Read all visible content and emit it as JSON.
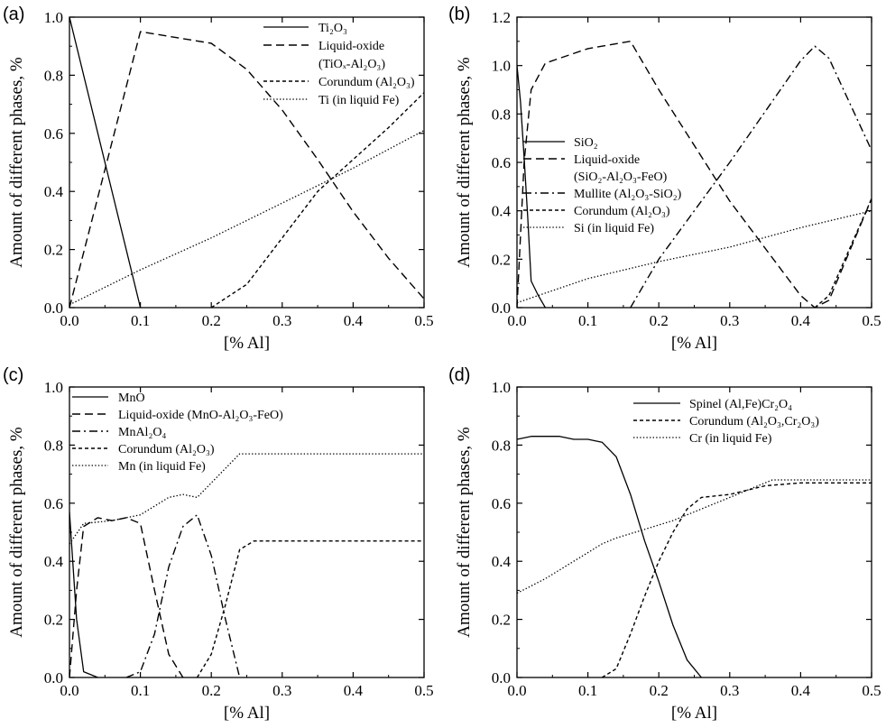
{
  "chart_data": [
    {
      "type": "line",
      "panel_label": "(a)",
      "xlabel": "[% Al]",
      "ylabel": "Amount of different phases, %",
      "xlim": [
        0,
        0.5
      ],
      "ylim": [
        0,
        1.0
      ],
      "xticks": [
        "0.0",
        "0.1",
        "0.2",
        "0.3",
        "0.4",
        "0.5"
      ],
      "yticks": [
        "0.0",
        "0.2",
        "0.4",
        "0.6",
        "0.8",
        "1.0"
      ],
      "legend_position": "top-right",
      "series": [
        {
          "name": "Ti₂O₃",
          "legend_lines": [
            "Ti₂O₃"
          ],
          "style": "solid",
          "x": [
            0,
            0.1
          ],
          "y": [
            1.0,
            0.0
          ]
        },
        {
          "name": "Liquid-oxide (TiOₓ-Al₂O₃)",
          "legend_lines": [
            "Liquid-oxide",
            "(TiOₓ-Al₂O₃)"
          ],
          "style": "dashed",
          "x": [
            0,
            0.1,
            0.2,
            0.25,
            0.3,
            0.35,
            0.4,
            0.45,
            0.5
          ],
          "y": [
            0.0,
            0.95,
            0.91,
            0.82,
            0.68,
            0.51,
            0.33,
            0.17,
            0.03
          ]
        },
        {
          "name": "Corundum (Al₂O₃)",
          "legend_lines": [
            "Corundum (Al₂O₃)"
          ],
          "style": "dotted",
          "x": [
            0.2,
            0.25,
            0.3,
            0.35,
            0.4,
            0.45,
            0.5
          ],
          "y": [
            0.0,
            0.08,
            0.24,
            0.4,
            0.51,
            0.62,
            0.74
          ]
        },
        {
          "name": "Ti (in liquid Fe)",
          "legend_lines": [
            "Ti (in liquid Fe)"
          ],
          "style": "fine-dotted",
          "x": [
            0,
            0.1,
            0.2,
            0.3,
            0.4,
            0.5
          ],
          "y": [
            0.01,
            0.13,
            0.24,
            0.36,
            0.48,
            0.61
          ]
        }
      ]
    },
    {
      "type": "line",
      "panel_label": "(b)",
      "xlabel": "[% Al]",
      "ylabel": "Amount of different phases, %",
      "xlim": [
        0,
        0.5
      ],
      "ylim": [
        0,
        1.2
      ],
      "xticks": [
        "0.0",
        "0.1",
        "0.2",
        "0.3",
        "0.4",
        "0.5"
      ],
      "yticks": [
        "0.0",
        "0.2",
        "0.4",
        "0.6",
        "0.8",
        "1.0",
        "1.2"
      ],
      "legend_position": "center-left",
      "series": [
        {
          "name": "SiO₂",
          "legend_lines": [
            "SiO₂"
          ],
          "style": "solid",
          "x": [
            0,
            0.005,
            0.01,
            0.015,
            0.02,
            0.03,
            0.04
          ],
          "y": [
            1.0,
            0.85,
            0.62,
            0.38,
            0.11,
            0.05,
            0.0
          ]
        },
        {
          "name": "Liquid-oxide (SiO₂-Al₂O₃-FeO)",
          "legend_lines": [
            "Liquid-oxide",
            "(SiO₂-Al₂O₃-FeO)"
          ],
          "style": "dashed",
          "x": [
            0,
            0.01,
            0.02,
            0.04,
            0.1,
            0.16,
            0.2,
            0.3,
            0.4,
            0.42,
            0.44,
            0.5
          ],
          "y": [
            0.0,
            0.6,
            0.9,
            1.01,
            1.07,
            1.1,
            0.9,
            0.44,
            0.05,
            0.0,
            0.03,
            0.45
          ]
        },
        {
          "name": "Mullite (Al₂O₃-SiO₂)",
          "legend_lines": [
            "Mullite (Al₂O₃-SiO₂)"
          ],
          "style": "dash-dot",
          "x": [
            0.16,
            0.2,
            0.3,
            0.4,
            0.42,
            0.44,
            0.5
          ],
          "y": [
            0.0,
            0.2,
            0.6,
            1.02,
            1.08,
            1.03,
            0.65
          ]
        },
        {
          "name": "Corundum (Al₂O₃)",
          "legend_lines": [
            "Corundum (Al₂O₃)"
          ],
          "style": "dotted",
          "x": [
            0.42,
            0.44,
            0.5
          ],
          "y": [
            0.0,
            0.05,
            0.45
          ]
        },
        {
          "name": "Si (in liquid Fe)",
          "legend_lines": [
            "Si (in liquid Fe)"
          ],
          "style": "fine-dotted",
          "x": [
            0,
            0.05,
            0.1,
            0.2,
            0.3,
            0.4,
            0.5
          ],
          "y": [
            0.02,
            0.07,
            0.12,
            0.19,
            0.25,
            0.33,
            0.4
          ]
        }
      ]
    },
    {
      "type": "line",
      "panel_label": "(c)",
      "xlabel": "[% Al]",
      "ylabel": "Amount of different phases, %",
      "xlim": [
        0,
        0.5
      ],
      "ylim": [
        0,
        1.0
      ],
      "xticks": [
        "0.0",
        "0.1",
        "0.2",
        "0.3",
        "0.4",
        "0.5"
      ],
      "yticks": [
        "0.0",
        "0.2",
        "0.4",
        "0.6",
        "0.8",
        "1.0"
      ],
      "legend_position": "top-left",
      "series": [
        {
          "name": "MnO",
          "legend_lines": [
            "MnO"
          ],
          "style": "solid",
          "x": [
            0,
            0.01,
            0.02,
            0.04
          ],
          "y": [
            0.57,
            0.2,
            0.02,
            0.0
          ]
        },
        {
          "name": "Liquid-oxide (MnO-Al₂O₃-FeO)",
          "legend_lines": [
            "Liquid-oxide (MnO-Al₂O₃-FeO)"
          ],
          "style": "dashed",
          "x": [
            0,
            0.01,
            0.02,
            0.04,
            0.06,
            0.08,
            0.1,
            0.12,
            0.14,
            0.16
          ],
          "y": [
            0.0,
            0.3,
            0.52,
            0.55,
            0.54,
            0.55,
            0.53,
            0.3,
            0.08,
            0.0
          ]
        },
        {
          "name": "MnAl₂O₄",
          "legend_lines": [
            "MnAl₂O₄"
          ],
          "style": "dash-dot",
          "x": [
            0.08,
            0.1,
            0.12,
            0.14,
            0.16,
            0.18,
            0.2,
            0.22,
            0.24
          ],
          "y": [
            0.0,
            0.02,
            0.15,
            0.38,
            0.52,
            0.56,
            0.42,
            0.2,
            0.0
          ]
        },
        {
          "name": "Corundum (Al₂O₃)",
          "legend_lines": [
            "Corundum (Al₂O₃)"
          ],
          "style": "dotted",
          "x": [
            0.18,
            0.2,
            0.22,
            0.24,
            0.26,
            0.3,
            0.4,
            0.5
          ],
          "y": [
            0.0,
            0.08,
            0.25,
            0.44,
            0.47,
            0.47,
            0.47,
            0.47
          ]
        },
        {
          "name": "Mn (in liquid Fe)",
          "legend_lines": [
            "Mn (in liquid Fe)"
          ],
          "style": "fine-dotted",
          "x": [
            0,
            0.02,
            0.06,
            0.1,
            0.14,
            0.16,
            0.18,
            0.22,
            0.24,
            0.3,
            0.4,
            0.5
          ],
          "y": [
            0.46,
            0.53,
            0.54,
            0.56,
            0.62,
            0.63,
            0.62,
            0.72,
            0.77,
            0.77,
            0.77,
            0.77
          ]
        }
      ]
    },
    {
      "type": "line",
      "panel_label": "(d)",
      "xlabel": "[% Al]",
      "ylabel": "Amount of different phases, %",
      "xlim": [
        0,
        0.5
      ],
      "ylim": [
        0,
        1.0
      ],
      "xticks": [
        "0.0",
        "0.1",
        "0.2",
        "0.3",
        "0.4",
        "0.5"
      ],
      "yticks": [
        "0.0",
        "0.2",
        "0.4",
        "0.6",
        "0.8",
        "1.0"
      ],
      "legend_position": "top-right",
      "series": [
        {
          "name": "Spinel (Al,Fe)Cr₂O₄",
          "legend_lines": [
            "Spinel (Al,Fe)Cr₂O₄"
          ],
          "style": "solid",
          "x": [
            0,
            0.02,
            0.04,
            0.06,
            0.08,
            0.1,
            0.12,
            0.14,
            0.16,
            0.18,
            0.2,
            0.22,
            0.24,
            0.26
          ],
          "y": [
            0.82,
            0.83,
            0.83,
            0.83,
            0.82,
            0.82,
            0.81,
            0.76,
            0.63,
            0.47,
            0.33,
            0.18,
            0.06,
            0.0
          ]
        },
        {
          "name": "Corundum (Al₂O₃,Cr₂O₃)",
          "legend_lines": [
            "Corundum (Al₂O₃,Cr₂O₃)"
          ],
          "style": "dotted",
          "x": [
            0.12,
            0.14,
            0.16,
            0.18,
            0.2,
            0.22,
            0.24,
            0.26,
            0.3,
            0.35,
            0.4,
            0.5
          ],
          "y": [
            0.0,
            0.03,
            0.15,
            0.28,
            0.4,
            0.5,
            0.58,
            0.62,
            0.63,
            0.66,
            0.67,
            0.67
          ]
        },
        {
          "name": "Cr (in liquid Fe)",
          "legend_lines": [
            "Cr (in liquid Fe)"
          ],
          "style": "fine-dotted",
          "x": [
            0,
            0.04,
            0.08,
            0.12,
            0.14,
            0.18,
            0.22,
            0.26,
            0.3,
            0.36,
            0.4,
            0.5
          ],
          "y": [
            0.29,
            0.34,
            0.4,
            0.46,
            0.48,
            0.51,
            0.54,
            0.58,
            0.62,
            0.68,
            0.68,
            0.68
          ]
        }
      ]
    }
  ]
}
